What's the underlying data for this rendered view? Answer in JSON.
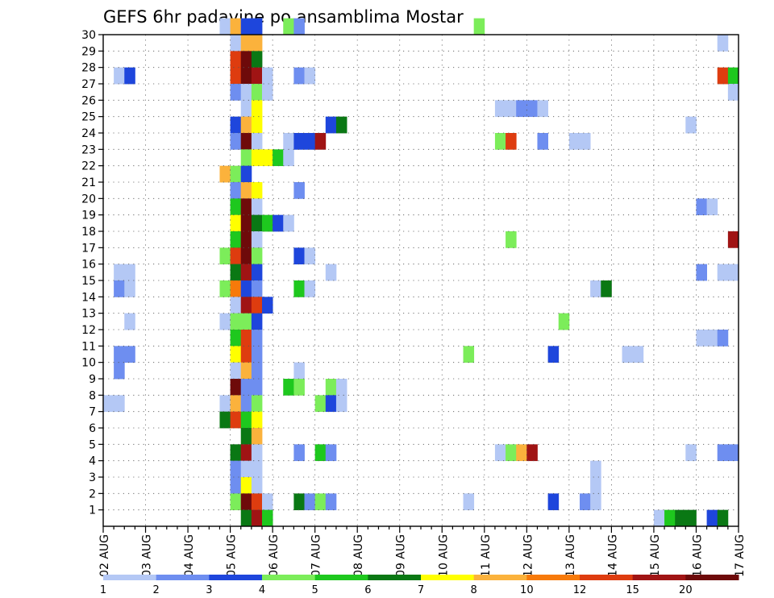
{
  "chart_data": {
    "type": "heatmap",
    "title": "GEFS 6hr padavine po ansamblima Mostar",
    "xlabel": "",
    "ylabel": "",
    "x_ticks": [
      "02 AUG",
      "03 AUG",
      "04 AUG",
      "05 AUG",
      "06 AUG",
      "07 AUG",
      "08 AUG",
      "09 AUG",
      "10 AUG",
      "11 AUG",
      "12 AUG",
      "13 AUG",
      "14 AUG",
      "15 AUG",
      "16 AUG",
      "17 AUG"
    ],
    "y_ticks": [
      1,
      2,
      3,
      4,
      5,
      6,
      7,
      8,
      9,
      10,
      11,
      12,
      13,
      14,
      15,
      16,
      17,
      18,
      19,
      20,
      21,
      22,
      23,
      24,
      25,
      26,
      27,
      28,
      29,
      30
    ],
    "y_range": [
      0,
      30
    ],
    "steps_per_day": 4,
    "num_steps": 60,
    "grid": true,
    "legend_position": "bottom",
    "colorbar": {
      "labels": [
        "1",
        "2",
        "3",
        "4",
        "5",
        "6",
        "7",
        "8",
        "10",
        "12",
        "15",
        "20"
      ],
      "colors": [
        "#b4c8f5",
        "#6e8ef0",
        "#1e46dc",
        "#7ced5a",
        "#1ec81e",
        "#0a7814",
        "#ffff00",
        "#fbb23c",
        "#f77a0a",
        "#de3c0f",
        "#a01414",
        "#6e0a0a"
      ]
    },
    "series_cells": [
      {
        "y": 30,
        "cells": [
          [
            11,
            0
          ],
          [
            12,
            7
          ],
          [
            13,
            2
          ],
          [
            14,
            2
          ],
          [
            17,
            3
          ],
          [
            18,
            1
          ],
          [
            35,
            3
          ]
        ]
      },
      {
        "y": 29,
        "cells": [
          [
            12,
            0
          ],
          [
            13,
            7
          ],
          [
            14,
            7
          ],
          [
            58,
            0
          ]
        ]
      },
      {
        "y": 28,
        "cells": [
          [
            12,
            9
          ],
          [
            13,
            11
          ],
          [
            14,
            5
          ]
        ]
      },
      {
        "y": 27,
        "cells": [
          [
            1,
            0
          ],
          [
            2,
            2
          ],
          [
            12,
            9
          ],
          [
            13,
            11
          ],
          [
            14,
            10
          ],
          [
            15,
            0
          ],
          [
            18,
            1
          ],
          [
            19,
            0
          ],
          [
            58,
            9
          ],
          [
            59,
            4
          ]
        ]
      },
      {
        "y": 26,
        "cells": [
          [
            12,
            1
          ],
          [
            13,
            0
          ],
          [
            14,
            3
          ],
          [
            15,
            0
          ],
          [
            59,
            0
          ]
        ]
      },
      {
        "y": 25,
        "cells": [
          [
            13,
            0
          ],
          [
            14,
            6
          ],
          [
            37,
            0
          ],
          [
            38,
            0
          ],
          [
            39,
            1
          ],
          [
            40,
            1
          ],
          [
            41,
            0
          ]
        ]
      },
      {
        "y": 24,
        "cells": [
          [
            12,
            2
          ],
          [
            13,
            7
          ],
          [
            14,
            6
          ],
          [
            21,
            2
          ],
          [
            22,
            5
          ],
          [
            55,
            0
          ]
        ]
      },
      {
        "y": 23,
        "cells": [
          [
            12,
            1
          ],
          [
            13,
            11
          ],
          [
            14,
            0
          ],
          [
            17,
            0
          ],
          [
            18,
            2
          ],
          [
            19,
            2
          ],
          [
            20,
            10
          ],
          [
            37,
            3
          ],
          [
            38,
            9
          ],
          [
            41,
            1
          ],
          [
            44,
            0
          ],
          [
            45,
            0
          ]
        ]
      },
      {
        "y": 22,
        "cells": [
          [
            13,
            3
          ],
          [
            14,
            6
          ],
          [
            15,
            6
          ],
          [
            16,
            4
          ],
          [
            17,
            0
          ]
        ]
      },
      {
        "y": 21,
        "cells": [
          [
            11,
            7
          ],
          [
            12,
            3
          ],
          [
            13,
            2
          ]
        ]
      },
      {
        "y": 20,
        "cells": [
          [
            12,
            1
          ],
          [
            13,
            7
          ],
          [
            14,
            6
          ],
          [
            18,
            1
          ]
        ]
      },
      {
        "y": 19,
        "cells": [
          [
            12,
            4
          ],
          [
            13,
            11
          ],
          [
            14,
            0
          ],
          [
            56,
            1
          ],
          [
            57,
            0
          ]
        ]
      },
      {
        "y": 18,
        "cells": [
          [
            12,
            6
          ],
          [
            13,
            11
          ],
          [
            14,
            5
          ],
          [
            15,
            4
          ],
          [
            16,
            2
          ],
          [
            17,
            0
          ]
        ]
      },
      {
        "y": 17,
        "cells": [
          [
            12,
            4
          ],
          [
            13,
            11
          ],
          [
            14,
            0
          ],
          [
            38,
            3
          ],
          [
            59,
            10
          ]
        ]
      },
      {
        "y": 16,
        "cells": [
          [
            11,
            3
          ],
          [
            12,
            9
          ],
          [
            13,
            11
          ],
          [
            14,
            3
          ],
          [
            18,
            2
          ],
          [
            19,
            0
          ]
        ]
      },
      {
        "y": 15,
        "cells": [
          [
            1,
            0
          ],
          [
            2,
            0
          ],
          [
            12,
            5
          ],
          [
            13,
            10
          ],
          [
            14,
            2
          ],
          [
            21,
            0
          ],
          [
            56,
            1
          ],
          [
            58,
            0
          ],
          [
            59,
            0
          ]
        ]
      },
      {
        "y": 14,
        "cells": [
          [
            1,
            1
          ],
          [
            2,
            0
          ],
          [
            11,
            3
          ],
          [
            12,
            8
          ],
          [
            13,
            2
          ],
          [
            14,
            1
          ],
          [
            18,
            4
          ],
          [
            19,
            0
          ],
          [
            46,
            0
          ],
          [
            47,
            5
          ]
        ]
      },
      {
        "y": 13,
        "cells": [
          [
            12,
            0
          ],
          [
            13,
            10
          ],
          [
            14,
            9
          ],
          [
            15,
            2
          ]
        ]
      },
      {
        "y": 12,
        "cells": [
          [
            2,
            0
          ],
          [
            11,
            0
          ],
          [
            12,
            3
          ],
          [
            13,
            3
          ],
          [
            14,
            2
          ],
          [
            43,
            3
          ]
        ]
      },
      {
        "y": 11,
        "cells": [
          [
            12,
            4
          ],
          [
            13,
            9
          ],
          [
            14,
            1
          ],
          [
            56,
            0
          ],
          [
            57,
            0
          ],
          [
            58,
            1
          ]
        ]
      },
      {
        "y": 10,
        "cells": [
          [
            1,
            1
          ],
          [
            2,
            1
          ],
          [
            12,
            6
          ],
          [
            13,
            9
          ],
          [
            14,
            1
          ],
          [
            34,
            3
          ],
          [
            42,
            2
          ],
          [
            49,
            0
          ],
          [
            50,
            0
          ]
        ]
      },
      {
        "y": 9,
        "cells": [
          [
            1,
            1
          ],
          [
            12,
            0
          ],
          [
            13,
            7
          ],
          [
            14,
            1
          ],
          [
            18,
            0
          ]
        ]
      },
      {
        "y": 8,
        "cells": [
          [
            12,
            11
          ],
          [
            13,
            1
          ],
          [
            14,
            1
          ],
          [
            17,
            4
          ],
          [
            18,
            3
          ],
          [
            21,
            3
          ],
          [
            22,
            0
          ]
        ]
      },
      {
        "y": 7,
        "cells": [
          [
            0,
            0
          ],
          [
            1,
            0
          ],
          [
            11,
            0
          ],
          [
            12,
            7
          ],
          [
            13,
            1
          ],
          [
            14,
            3
          ],
          [
            20,
            3
          ],
          [
            21,
            2
          ],
          [
            22,
            0
          ]
        ]
      },
      {
        "y": 6,
        "cells": [
          [
            11,
            5
          ],
          [
            12,
            9
          ],
          [
            13,
            4
          ],
          [
            14,
            6
          ]
        ]
      },
      {
        "y": 5,
        "cells": [
          [
            13,
            5
          ],
          [
            14,
            7
          ]
        ]
      },
      {
        "y": 4,
        "cells": [
          [
            12,
            5
          ],
          [
            13,
            10
          ],
          [
            14,
            0
          ],
          [
            18,
            1
          ],
          [
            20,
            4
          ],
          [
            21,
            1
          ],
          [
            37,
            0
          ],
          [
            38,
            3
          ],
          [
            39,
            7
          ],
          [
            40,
            10
          ],
          [
            55,
            0
          ],
          [
            58,
            1
          ],
          [
            59,
            1
          ]
        ]
      },
      {
        "y": 3,
        "cells": [
          [
            12,
            1
          ],
          [
            13,
            0
          ],
          [
            14,
            0
          ],
          [
            46,
            0
          ]
        ]
      },
      {
        "y": 2,
        "cells": [
          [
            12,
            1
          ],
          [
            13,
            6
          ],
          [
            14,
            0
          ],
          [
            46,
            0
          ]
        ]
      },
      {
        "y": 1,
        "cells": [
          [
            12,
            3
          ],
          [
            13,
            11
          ],
          [
            14,
            9
          ],
          [
            15,
            0
          ],
          [
            18,
            5
          ],
          [
            19,
            1
          ],
          [
            20,
            3
          ],
          [
            21,
            1
          ],
          [
            34,
            0
          ],
          [
            42,
            2
          ],
          [
            45,
            1
          ],
          [
            46,
            0
          ]
        ]
      },
      {
        "y": 0,
        "cells": [
          [
            13,
            5
          ],
          [
            14,
            10
          ],
          [
            15,
            4
          ],
          [
            52,
            0
          ],
          [
            53,
            4
          ],
          [
            54,
            5
          ],
          [
            55,
            5
          ],
          [
            57,
            2
          ],
          [
            58,
            5
          ]
        ]
      }
    ]
  }
}
